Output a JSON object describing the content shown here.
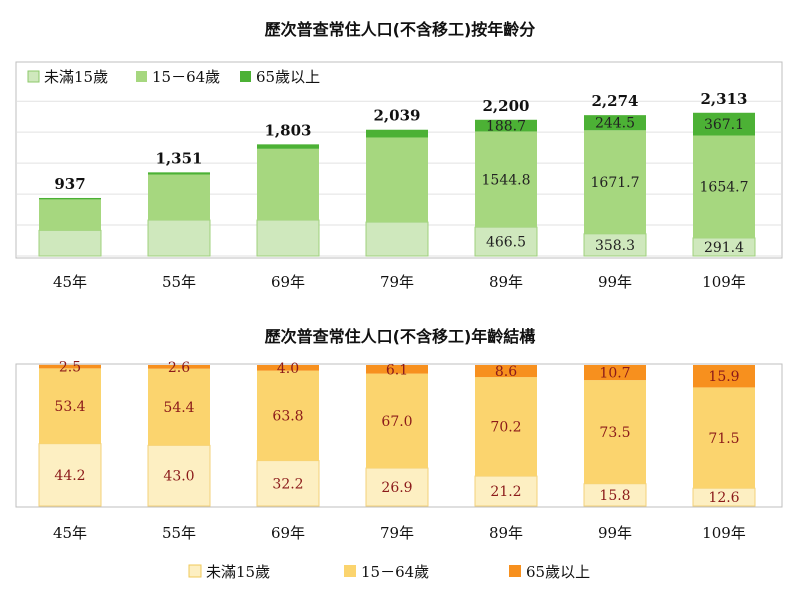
{
  "chart_data": [
    {
      "type": "bar",
      "stacked": true,
      "title": "歷次普查常住人口(不含移工)按年齡分",
      "categories": [
        "45年",
        "55年",
        "69年",
        "79年",
        "89年",
        "99年",
        "109年"
      ],
      "totals": [
        "937",
        "1,351",
        "1,803",
        "2,039",
        "2,200",
        "2,274",
        "2,313"
      ],
      "total_values": [
        937,
        1351,
        1803,
        2039,
        2200,
        2274,
        2313
      ],
      "series": [
        {
          "name": "未滿15歲",
          "color": "#cfe8bd",
          "values": [
            414,
            581,
            581,
            548,
            466.5,
            358.3,
            291.4
          ],
          "labels": [
            "",
            "",
            "",
            "",
            "466.5",
            "358.3",
            "291.4"
          ]
        },
        {
          "name": "15－64歲",
          "color": "#a6d77f",
          "values": [
            500,
            735,
            1150,
            1366,
            1544.8,
            1671.7,
            1654.7
          ],
          "labels": [
            "",
            "",
            "",
            "",
            "1544.8",
            "1671.7",
            "1654.7"
          ]
        },
        {
          "name": "65歲以上",
          "color": "#4cb135",
          "values": [
            23,
            35,
            72,
            125,
            188.7,
            244.5,
            367.1
          ],
          "labels": [
            "",
            "",
            "",
            "",
            "188.7",
            "244.5",
            "367.1"
          ]
        }
      ],
      "legend": "top-left",
      "ylim": [
        0,
        2600
      ],
      "grid": true
    },
    {
      "type": "bar",
      "stacked": true,
      "title": "歷次普查常住人口(不含移工)年齡結構",
      "categories": [
        "45年",
        "55年",
        "69年",
        "79年",
        "89年",
        "99年",
        "109年"
      ],
      "series": [
        {
          "name": "未滿15歲",
          "color": "#fdefc2",
          "values": [
            44.2,
            43.0,
            32.2,
            26.9,
            21.2,
            15.8,
            12.6
          ],
          "labels": [
            "44.2",
            "43.0",
            "32.2",
            "26.9",
            "21.2",
            "15.8",
            "12.6"
          ]
        },
        {
          "name": "15－64歲",
          "color": "#fbd46e",
          "values": [
            53.4,
            54.4,
            63.8,
            67.0,
            70.2,
            73.5,
            71.5
          ],
          "labels": [
            "53.4",
            "54.4",
            "63.8",
            "67.0",
            "70.2",
            "73.5",
            "71.5"
          ]
        },
        {
          "name": "65歲以上",
          "color": "#f7901e",
          "values": [
            2.5,
            2.6,
            4.0,
            6.1,
            8.6,
            10.7,
            15.9
          ],
          "labels": [
            "2.5",
            "2.6",
            "4.0",
            "6.1",
            "8.6",
            "10.7",
            "15.9"
          ]
        }
      ],
      "legend": "bottom",
      "ylim": [
        0,
        100
      ],
      "grid": true
    }
  ]
}
